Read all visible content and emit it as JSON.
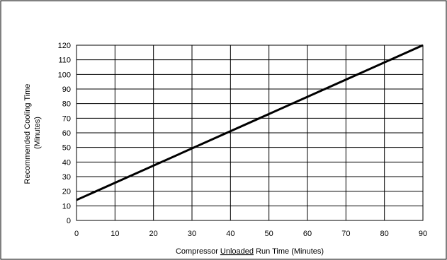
{
  "chart_data": {
    "type": "line",
    "title": "",
    "ylabel_line1": "Recommended Cooling Time",
    "ylabel_line2": "(Minutes)",
    "xlabel_pre": "Compressor ",
    "xlabel_underlined": "Unloaded",
    "xlabel_post": " Run Time (Minutes)",
    "xlim": [
      0,
      90
    ],
    "ylim": [
      0,
      120
    ],
    "x_ticks": [
      "0",
      "10",
      "20",
      "30",
      "40",
      "50",
      "60",
      "70",
      "80",
      "90"
    ],
    "y_ticks": [
      "0",
      "10",
      "20",
      "30",
      "40",
      "50",
      "60",
      "70",
      "80",
      "90",
      "100",
      "110",
      "120"
    ],
    "grid": true,
    "series": [
      {
        "x": [
          0,
          90
        ],
        "y": [
          14,
          120
        ]
      }
    ],
    "line_color": "#000000"
  }
}
